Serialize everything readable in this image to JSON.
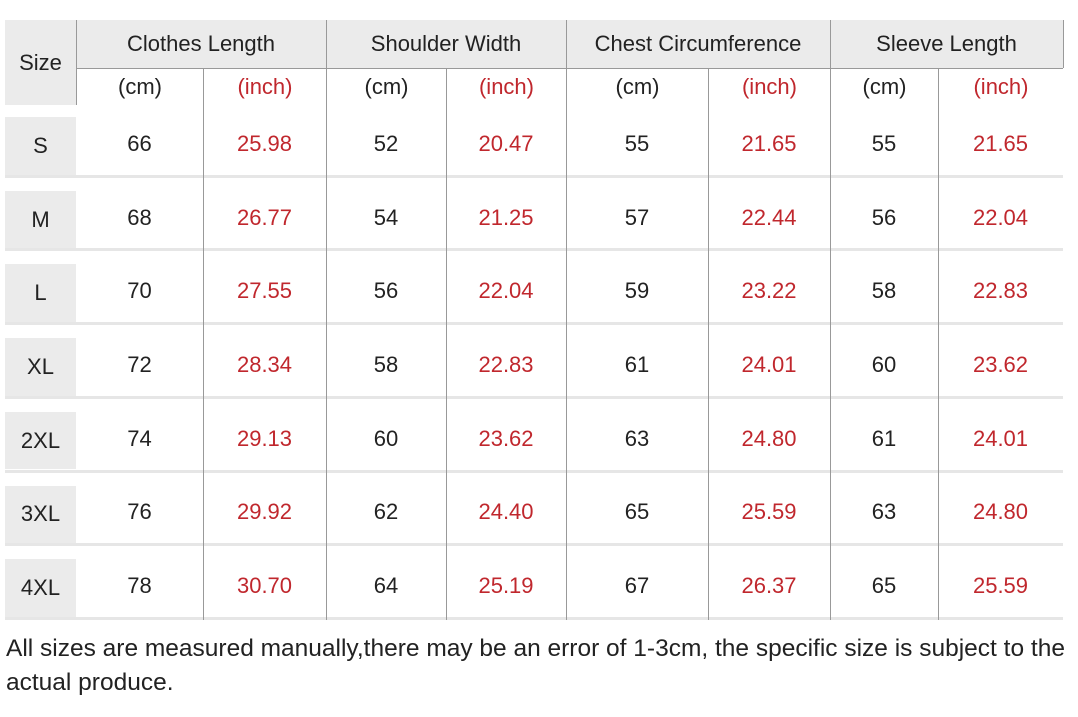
{
  "table": {
    "size_header": "Size",
    "groups": [
      {
        "title": "Clothes Length",
        "units": [
          "(cm)",
          "(inch)"
        ]
      },
      {
        "title": "Shoulder Width",
        "units": [
          "(cm)",
          "(inch)"
        ]
      },
      {
        "title": "Chest Circumference",
        "units": [
          "(cm)",
          "(inch)"
        ]
      },
      {
        "title": "Sleeve Length",
        "units": [
          "(cm)",
          "(inch)"
        ]
      }
    ],
    "rows": [
      [
        "S",
        "66",
        "25.98",
        "52",
        "20.47",
        "55",
        "21.65",
        "55",
        "21.65"
      ],
      [
        "M",
        "68",
        "26.77",
        "54",
        "21.25",
        "57",
        "22.44",
        "56",
        "22.04"
      ],
      [
        "L",
        "70",
        "27.55",
        "56",
        "22.04",
        "59",
        "23.22",
        "58",
        "22.83"
      ],
      [
        "XL",
        "72",
        "28.34",
        "58",
        "22.83",
        "61",
        "24.01",
        "60",
        "23.62"
      ],
      [
        "2XL",
        "74",
        "29.13",
        "60",
        "23.62",
        "63",
        "24.80",
        "61",
        "24.01"
      ],
      [
        "3XL",
        "76",
        "29.92",
        "62",
        "24.40",
        "65",
        "25.59",
        "63",
        "24.80"
      ],
      [
        "4XL",
        "78",
        "30.70",
        "64",
        "25.19",
        "67",
        "26.37",
        "65",
        "25.59"
      ]
    ]
  },
  "note": "All sizes are measured manually,there may be an error of 1-3cm, the specific size is subject to the actual produce."
}
